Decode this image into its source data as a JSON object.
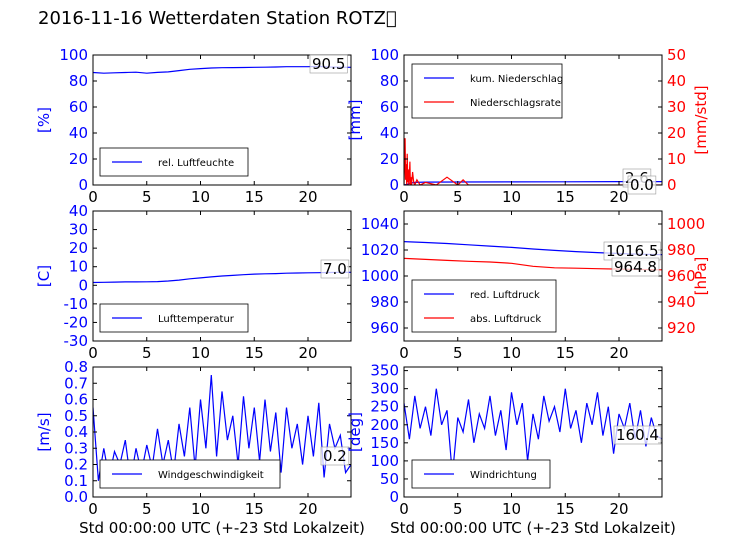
{
  "title": "2016-11-16 Wetterdaten Station ROTZ\u0000",
  "colors": {
    "left_axis": "#0000ff",
    "right_axis": "#ff0000",
    "series_blue": "#0000ff",
    "series_red": "#ff0000",
    "grid_frame": "#000000"
  },
  "chart_data": [
    {
      "id": "humidity",
      "type": "line",
      "xlim": [
        0,
        24
      ],
      "xticks": [
        0,
        5,
        10,
        15,
        20
      ],
      "ylim": [
        0,
        100
      ],
      "yticks": [
        0,
        20,
        40,
        60,
        80,
        100
      ],
      "ylabel": "[%]",
      "legend": {
        "position": "lower-left"
      },
      "series": [
        {
          "name": "rel. Luftfeuchte",
          "color": "#0000ff",
          "axis": "left",
          "x": [
            0,
            1,
            2,
            3,
            4,
            5,
            6,
            7,
            8,
            9,
            10,
            11,
            12,
            13,
            14,
            15,
            16,
            17,
            18,
            19,
            20,
            21,
            22,
            23,
            24
          ],
          "y": [
            86.5,
            86,
            86.3,
            86.5,
            86.8,
            86,
            86.6,
            87,
            88,
            89,
            89.5,
            90,
            90.2,
            90.3,
            90.4,
            90.5,
            90.6,
            90.8,
            91,
            91,
            91,
            91.2,
            90.8,
            90.6,
            90.5
          ]
        }
      ],
      "annotations": [
        {
          "text": "90.5"
        }
      ]
    },
    {
      "id": "precip",
      "type": "line",
      "xlim": [
        0,
        24
      ],
      "xticks": [
        0,
        5,
        10,
        15,
        20
      ],
      "ylim": [
        0,
        100
      ],
      "yticks": [
        0,
        20,
        40,
        60,
        80,
        100
      ],
      "ylabel": "[mm]",
      "y2lim": [
        0,
        50
      ],
      "y2ticks": [
        0,
        10,
        20,
        30,
        40,
        50
      ],
      "y2label": "[mm/std]",
      "legend": {
        "position": "upper-left"
      },
      "series": [
        {
          "name": "kum. Niederschlag",
          "color": "#0000ff",
          "axis": "left",
          "x": [
            0,
            0.3,
            0.6,
            1,
            2,
            5,
            10,
            15,
            20,
            24
          ],
          "y": [
            0,
            0.5,
            1.5,
            2,
            2.2,
            2.3,
            2.4,
            2.5,
            2.6,
            2.6
          ]
        },
        {
          "name": "Niederschlagsrate",
          "color": "#ff0000",
          "axis": "right",
          "x": [
            0,
            0.1,
            0.15,
            0.2,
            0.25,
            0.3,
            0.35,
            0.4,
            0.45,
            0.5,
            0.55,
            0.6,
            0.65,
            0.7,
            0.8,
            0.9,
            1,
            1.2,
            1.5,
            2,
            3,
            4,
            5,
            5.5,
            6,
            7,
            10,
            15,
            20,
            24
          ],
          "y": [
            0,
            18,
            2,
            8,
            0,
            12,
            1,
            6,
            0,
            4,
            9,
            0,
            3,
            0,
            5,
            1,
            0,
            2,
            0,
            1,
            0,
            3,
            0,
            2,
            0,
            0,
            0,
            0,
            0,
            0
          ]
        }
      ],
      "annotations": [
        {
          "text": "2.6"
        },
        {
          "text": "0.0"
        }
      ]
    },
    {
      "id": "temperature",
      "type": "line",
      "xlim": [
        0,
        24
      ],
      "xticks": [
        0,
        5,
        10,
        15,
        20
      ],
      "ylim": [
        -30,
        40
      ],
      "yticks": [
        -30,
        -20,
        -10,
        0,
        10,
        20,
        30,
        40
      ],
      "ylabel": "[C]",
      "legend": {
        "position": "lower-left"
      },
      "series": [
        {
          "name": "Lufttemperatur",
          "color": "#0000ff",
          "axis": "left",
          "x": [
            0,
            1,
            2,
            3,
            4,
            5,
            6,
            7,
            8,
            9,
            10,
            11,
            12,
            13,
            14,
            15,
            16,
            17,
            18,
            19,
            20,
            21,
            22,
            23,
            24
          ],
          "y": [
            1.5,
            1.6,
            1.7,
            1.8,
            1.8,
            1.9,
            2,
            2.3,
            2.8,
            3.5,
            4,
            4.5,
            5,
            5.3,
            5.7,
            6,
            6.2,
            6.3,
            6.5,
            6.6,
            6.7,
            6.8,
            6.9,
            7,
            7
          ]
        }
      ],
      "annotations": [
        {
          "text": "7.0"
        }
      ]
    },
    {
      "id": "pressure",
      "type": "line",
      "xlim": [
        0,
        24
      ],
      "xticks": [
        0,
        5,
        10,
        15,
        20
      ],
      "ylim": [
        950,
        1050
      ],
      "yticks": [
        960,
        980,
        1000,
        1020,
        1040
      ],
      "y2lim": [
        910,
        1010
      ],
      "y2ticks": [
        920,
        940,
        960,
        980,
        1000
      ],
      "y2label": "[hPa]",
      "legend": {
        "position": "lower-left"
      },
      "series": [
        {
          "name": "red. Luftdruck",
          "color": "#0000ff",
          "axis": "left",
          "x": [
            0,
            2,
            4,
            6,
            8,
            10,
            12,
            14,
            16,
            18,
            20,
            22,
            24
          ],
          "y": [
            1026.5,
            1025.8,
            1025,
            1024,
            1023,
            1022,
            1020.8,
            1019.7,
            1018.8,
            1018,
            1017.3,
            1016.8,
            1016.5
          ]
        },
        {
          "name": "abs. Luftdruck",
          "color": "#ff0000",
          "axis": "right",
          "x": [
            0,
            2,
            4,
            6,
            8,
            10,
            12,
            14,
            16,
            18,
            20,
            22,
            24
          ],
          "y": [
            973.5,
            972.8,
            972,
            971.3,
            970.8,
            969.8,
            967.5,
            966.3,
            966,
            965.6,
            965.3,
            965,
            964.8
          ]
        }
      ],
      "annotations": [
        {
          "text": "1016.5"
        },
        {
          "text": "964.8"
        }
      ]
    },
    {
      "id": "windspeed",
      "type": "line",
      "xlim": [
        0,
        24
      ],
      "xticks": [
        0,
        5,
        10,
        15,
        20
      ],
      "ylim": [
        0,
        0.8
      ],
      "yticks": [
        0.0,
        0.1,
        0.2,
        0.3,
        0.4,
        0.5,
        0.6,
        0.7,
        0.8
      ],
      "ylabel": "[m/s]",
      "xlabel": "Std 00:00:00 UTC (+-23 Std Lokalzeit)",
      "legend": {
        "position": "lower-left"
      },
      "series": [
        {
          "name": "Windgeschwindigkeit",
          "color": "#0000ff",
          "axis": "left",
          "x": [
            0,
            0.5,
            1,
            1.5,
            2,
            2.5,
            3,
            3.5,
            4,
            4.5,
            5,
            5.5,
            6,
            6.5,
            7,
            7.5,
            8,
            8.5,
            9,
            9.5,
            10,
            10.5,
            11,
            11.5,
            12,
            12.5,
            13,
            13.5,
            14,
            14.5,
            15,
            15.5,
            16,
            16.5,
            17,
            17.5,
            18,
            18.5,
            19,
            19.5,
            20,
            20.5,
            21,
            21.5,
            22,
            22.5,
            23,
            23.5,
            24
          ],
          "y": [
            0.55,
            0.1,
            0.3,
            0.12,
            0.28,
            0.2,
            0.35,
            0.1,
            0.3,
            0.15,
            0.32,
            0.18,
            0.42,
            0.2,
            0.35,
            0.15,
            0.45,
            0.25,
            0.55,
            0.18,
            0.6,
            0.3,
            0.75,
            0.25,
            0.65,
            0.35,
            0.5,
            0.2,
            0.62,
            0.3,
            0.55,
            0.22,
            0.6,
            0.28,
            0.52,
            0.15,
            0.55,
            0.3,
            0.45,
            0.2,
            0.5,
            0.25,
            0.58,
            0.12,
            0.45,
            0.3,
            0.38,
            0.15,
            0.2
          ]
        }
      ],
      "annotations": [
        {
          "text": "0.2"
        }
      ]
    },
    {
      "id": "winddir",
      "type": "line",
      "xlim": [
        0,
        24
      ],
      "xticks": [
        0,
        5,
        10,
        15,
        20
      ],
      "ylim": [
        0,
        360
      ],
      "yticks": [
        0,
        50,
        100,
        150,
        200,
        250,
        300,
        350
      ],
      "ylabel": "[deg]",
      "xlabel": "Std 00:00:00 UTC (+-23 Std Lokalzeit)",
      "legend": {
        "position": "lower-left"
      },
      "series": [
        {
          "name": "Windrichtung",
          "color": "#0000ff",
          "axis": "left",
          "x": [
            0,
            0.5,
            1,
            1.5,
            2,
            2.5,
            3,
            3.5,
            4,
            4.5,
            5,
            5.5,
            6,
            6.5,
            7,
            7.5,
            8,
            8.5,
            9,
            9.5,
            10,
            10.5,
            11,
            11.5,
            12,
            12.5,
            13,
            13.5,
            14,
            14.5,
            15,
            15.5,
            16,
            16.5,
            17,
            17.5,
            18,
            18.5,
            19,
            19.5,
            20,
            20.5,
            21,
            21.5,
            22,
            22.5,
            23,
            23.5,
            24
          ],
          "y": [
            260,
            160,
            280,
            190,
            250,
            170,
            300,
            200,
            240,
            60,
            220,
            180,
            270,
            150,
            230,
            190,
            280,
            170,
            240,
            130,
            290,
            200,
            260,
            100,
            230,
            160,
            280,
            210,
            250,
            180,
            300,
            190,
            240,
            150,
            260,
            200,
            290,
            170,
            250,
            120,
            230,
            190,
            260,
            160,
            240,
            140,
            220,
            170,
            160.4
          ]
        }
      ],
      "annotations": [
        {
          "text": "160.4"
        }
      ]
    }
  ]
}
